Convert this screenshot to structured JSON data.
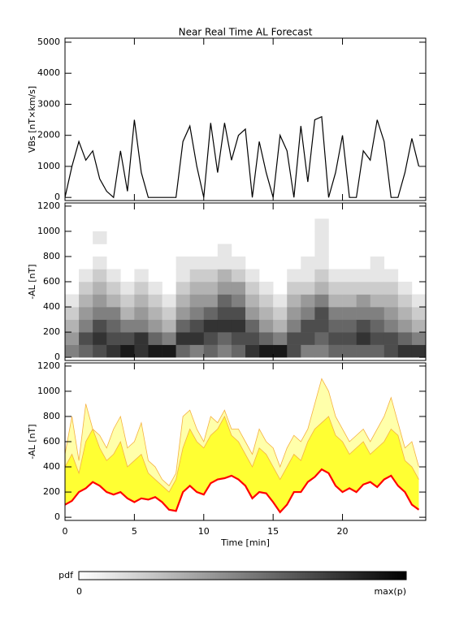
{
  "chart_data": [
    {
      "type": "line",
      "title": "Near Real Time AL Forecast",
      "ylabel": "VBs [nT×km/s]",
      "color": "#000000",
      "xlim": [
        0,
        26
      ],
      "ylim": [
        -100,
        5130
      ],
      "yticks": [
        0,
        1000,
        2000,
        3000,
        4000,
        5000
      ],
      "x": [
        0,
        0.5,
        1,
        1.5,
        2,
        2.5,
        3,
        3.5,
        4,
        4.5,
        5,
        5.5,
        6,
        6.5,
        7,
        7.5,
        8,
        8.5,
        9,
        9.5,
        10,
        10.5,
        11,
        11.5,
        12,
        12.5,
        13,
        13.5,
        14,
        14.5,
        15,
        15.5,
        16,
        16.5,
        17,
        17.5,
        18,
        18.5,
        19,
        19.5,
        20,
        20.5,
        21,
        21.5,
        22,
        22.5,
        23,
        23.5,
        24,
        24.5,
        25,
        25.5
      ],
      "values": [
        0,
        1000,
        1800,
        1200,
        1500,
        600,
        200,
        0,
        1500,
        200,
        2500,
        800,
        0,
        0,
        0,
        0,
        0,
        1800,
        2300,
        1000,
        0,
        2400,
        800,
        2400,
        1200,
        2000,
        2200,
        0,
        1800,
        800,
        0,
        2000,
        1500,
        0,
        2300,
        500,
        2500,
        2600,
        0,
        800,
        2000,
        0,
        0,
        1500,
        1200,
        2500,
        1800,
        0,
        0,
        800,
        1900,
        1000
      ]
    },
    {
      "type": "heatmap",
      "ylabel": "-AL [nT]",
      "xlim": [
        0,
        26
      ],
      "ylim": [
        -25,
        1225
      ],
      "yticks": [
        0,
        200,
        400,
        600,
        800,
        1000,
        1200
      ],
      "xbins": [
        0,
        1,
        2,
        3,
        4,
        5,
        6,
        7,
        8,
        9,
        10,
        11,
        12,
        13,
        14,
        15,
        16,
        17,
        18,
        19,
        20,
        21,
        22,
        23,
        24,
        25,
        26
      ],
      "ybins": [
        0,
        100,
        200,
        300,
        400,
        500,
        600,
        700,
        800,
        900,
        1000,
        1100,
        1200
      ],
      "z": [
        [
          0.5,
          0.4,
          0.3,
          0.2,
          0.1,
          0,
          0,
          0,
          0,
          0,
          0,
          0
        ],
        [
          0.6,
          0.7,
          0.5,
          0.4,
          0.3,
          0.2,
          0.1,
          0,
          0,
          0,
          0,
          0
        ],
        [
          0.7,
          0.8,
          0.7,
          0.5,
          0.4,
          0.3,
          0.2,
          0.1,
          0,
          0.1,
          0,
          0
        ],
        [
          0.8,
          0.7,
          0.6,
          0.5,
          0.3,
          0.2,
          0.1,
          0,
          0,
          0,
          0,
          0
        ],
        [
          0.9,
          0.7,
          0.5,
          0.3,
          0.2,
          0.1,
          0,
          0,
          0,
          0,
          0,
          0
        ],
        [
          0.8,
          0.8,
          0.5,
          0.4,
          0.3,
          0.2,
          0.1,
          0,
          0,
          0,
          0,
          0
        ],
        [
          0.9,
          0.6,
          0.4,
          0.3,
          0.2,
          0.1,
          0,
          0,
          0,
          0,
          0,
          0
        ],
        [
          0.9,
          0.5,
          0.3,
          0.2,
          0.1,
          0,
          0,
          0,
          0,
          0,
          0,
          0
        ],
        [
          0.6,
          0.8,
          0.6,
          0.4,
          0.3,
          0.2,
          0.1,
          0.1,
          0,
          0,
          0,
          0
        ],
        [
          0.5,
          0.8,
          0.7,
          0.5,
          0.4,
          0.3,
          0.2,
          0.1,
          0,
          0,
          0,
          0
        ],
        [
          0.6,
          0.7,
          0.8,
          0.6,
          0.4,
          0.3,
          0.2,
          0.1,
          0,
          0,
          0,
          0
        ],
        [
          0.5,
          0.6,
          0.8,
          0.7,
          0.6,
          0.4,
          0.3,
          0.1,
          0.1,
          0,
          0,
          0
        ],
        [
          0.6,
          0.7,
          0.8,
          0.7,
          0.5,
          0.4,
          0.2,
          0.1,
          0,
          0,
          0,
          0
        ],
        [
          0.8,
          0.7,
          0.6,
          0.4,
          0.3,
          0.2,
          0.1,
          0,
          0,
          0,
          0,
          0
        ],
        [
          0.9,
          0.6,
          0.4,
          0.3,
          0.2,
          0.1,
          0,
          0,
          0,
          0,
          0,
          0
        ],
        [
          0.9,
          0.5,
          0.3,
          0.2,
          0.1,
          0,
          0,
          0,
          0,
          0,
          0,
          0
        ],
        [
          0.7,
          0.7,
          0.5,
          0.4,
          0.3,
          0.2,
          0.1,
          0,
          0,
          0,
          0,
          0
        ],
        [
          0.5,
          0.7,
          0.7,
          0.5,
          0.4,
          0.2,
          0.1,
          0.1,
          0,
          0,
          0,
          0
        ],
        [
          0.5,
          0.6,
          0.7,
          0.7,
          0.5,
          0.3,
          0.2,
          0.1,
          0.1,
          0.1,
          0.1,
          0
        ],
        [
          0.6,
          0.7,
          0.6,
          0.5,
          0.3,
          0.2,
          0.1,
          0,
          0,
          0,
          0,
          0
        ],
        [
          0.6,
          0.7,
          0.6,
          0.5,
          0.3,
          0.2,
          0.1,
          0,
          0,
          0,
          0,
          0
        ],
        [
          0.6,
          0.8,
          0.7,
          0.5,
          0.4,
          0.2,
          0.1,
          0,
          0,
          0,
          0,
          0
        ],
        [
          0.6,
          0.7,
          0.6,
          0.5,
          0.3,
          0.2,
          0.1,
          0.1,
          0,
          0,
          0,
          0
        ],
        [
          0.7,
          0.7,
          0.5,
          0.4,
          0.3,
          0.2,
          0.1,
          0,
          0,
          0,
          0,
          0
        ],
        [
          0.8,
          0.6,
          0.4,
          0.3,
          0.2,
          0.1,
          0,
          0,
          0,
          0,
          0,
          0
        ],
        [
          0.8,
          0.5,
          0.3,
          0.2,
          0.1,
          0,
          0,
          0,
          0,
          0,
          0,
          0
        ]
      ]
    },
    {
      "type": "band",
      "ylabel": "-AL [nT]",
      "xlabel": "Time [min]",
      "xlim": [
        0,
        26
      ],
      "xticks": [
        0,
        5,
        10,
        15,
        20
      ],
      "ylim": [
        -25,
        1225
      ],
      "yticks": [
        0,
        200,
        400,
        600,
        800,
        1000,
        1200
      ],
      "x": [
        0,
        0.5,
        1,
        1.5,
        2,
        2.5,
        3,
        3.5,
        4,
        4.5,
        5,
        5.5,
        6,
        6.5,
        7,
        7.5,
        8,
        8.5,
        9,
        9.5,
        10,
        10.5,
        11,
        11.5,
        12,
        12.5,
        13,
        13.5,
        14,
        14.5,
        15,
        15.5,
        16,
        16.5,
        17,
        17.5,
        18,
        18.5,
        19,
        19.5,
        20,
        20.5,
        21,
        21.5,
        22,
        22.5,
        23,
        23.5,
        24,
        24.5,
        25,
        25.5
      ],
      "series": [
        {
          "color": "#ff0000",
          "values": [
            100,
            130,
            200,
            230,
            280,
            250,
            200,
            180,
            200,
            150,
            120,
            150,
            140,
            160,
            120,
            60,
            50,
            200,
            250,
            200,
            180,
            270,
            300,
            310,
            330,
            300,
            250,
            150,
            200,
            190,
            120,
            40,
            100,
            200,
            200,
            280,
            320,
            380,
            350,
            250,
            200,
            230,
            200,
            260,
            280,
            240,
            300,
            330,
            250,
            200,
            100,
            60
          ]
        },
        {
          "color": "#ffff33",
          "line_color": "#f5b041",
          "values": [
            400,
            500,
            350,
            600,
            700,
            550,
            450,
            500,
            600,
            400,
            450,
            500,
            350,
            300,
            250,
            200,
            300,
            550,
            700,
            600,
            550,
            650,
            700,
            800,
            650,
            600,
            500,
            400,
            550,
            500,
            400,
            300,
            400,
            500,
            450,
            600,
            700,
            750,
            800,
            650,
            600,
            500,
            550,
            600,
            500,
            550,
            600,
            700,
            650,
            450,
            400,
            300
          ]
        },
        {
          "color": "#ffffaa",
          "line_color": "#f5b041",
          "values": [
            500,
            800,
            450,
            900,
            700,
            650,
            550,
            700,
            800,
            550,
            600,
            750,
            450,
            400,
            300,
            250,
            350,
            800,
            850,
            700,
            600,
            800,
            750,
            850,
            700,
            700,
            600,
            500,
            700,
            600,
            550,
            400,
            550,
            650,
            600,
            700,
            900,
            1100,
            1000,
            800,
            700,
            600,
            650,
            700,
            600,
            700,
            800,
            950,
            750,
            550,
            600,
            400
          ]
        }
      ]
    }
  ],
  "colorbar": {
    "label": "pdf",
    "ticks": [
      "0",
      "max(p)"
    ]
  }
}
